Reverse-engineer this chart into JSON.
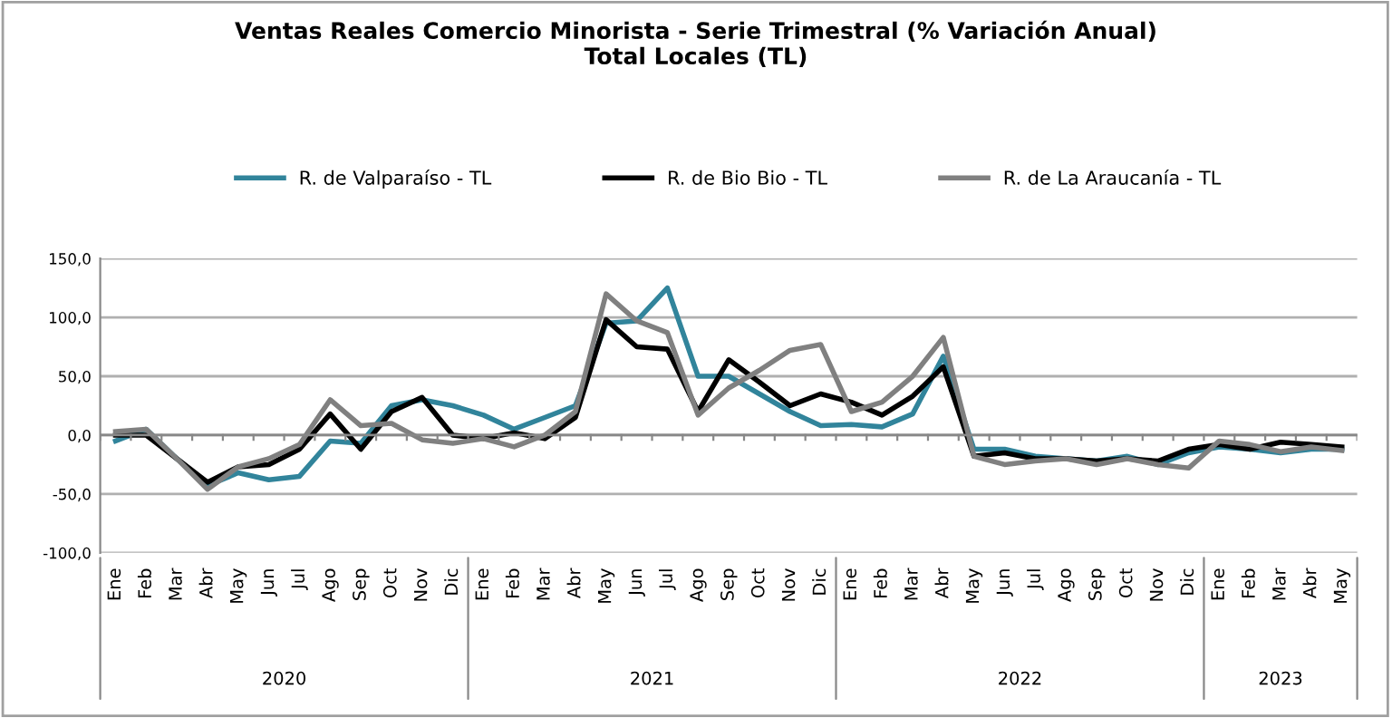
{
  "chart_data": {
    "type": "line",
    "title": "Ventas Reales Comercio Minorista - Serie Trimestral (% Variación Anual)\nTotal Locales (TL)",
    "categories": [
      "Ene",
      "Feb",
      "Mar",
      "Abr",
      "May",
      "Jun",
      "Jul",
      "Ago",
      "Sep",
      "Oct",
      "Nov",
      "Dic",
      "Ene",
      "Feb",
      "Mar",
      "Abr",
      "May",
      "Jun",
      "Jul",
      "Ago",
      "Sep",
      "Oct",
      "Nov",
      "Dic",
      "Ene",
      "Feb",
      "Mar",
      "Abr",
      "May",
      "Jun",
      "Jul",
      "Ago",
      "Sep",
      "Oct",
      "Nov",
      "Dic",
      "Ene",
      "Feb",
      "Mar",
      "Abr",
      "May"
    ],
    "series": [
      {
        "name": "R. de Valparaíso - TL",
        "color": "#31849b",
        "values": [
          -5,
          5,
          -20,
          -43,
          -32,
          -38,
          -35,
          -5,
          -7,
          25,
          30,
          25,
          17,
          5,
          15,
          25,
          95,
          97,
          125,
          50,
          50,
          35,
          20,
          8,
          9,
          7,
          18,
          67,
          -12,
          -12,
          -18,
          -20,
          -22,
          -18,
          -25,
          -15,
          -10,
          -12,
          -15,
          -12,
          -12
        ]
      },
      {
        "name": "R. de Bio Bio - TL",
        "color": "#000000",
        "values": [
          0,
          0,
          -20,
          -40,
          -27,
          -25,
          -12,
          18,
          -12,
          20,
          32,
          0,
          -3,
          2,
          -3,
          15,
          98,
          75,
          73,
          20,
          64,
          45,
          25,
          35,
          28,
          17,
          33,
          58,
          -18,
          -15,
          -20,
          -20,
          -22,
          -20,
          -22,
          -12,
          -8,
          -12,
          -6,
          -8,
          -10
        ]
      },
      {
        "name": "R. de La Araucanía - TL",
        "color": "#808080",
        "values": [
          3,
          5,
          -20,
          -46,
          -27,
          -20,
          -8,
          30,
          8,
          10,
          -4,
          -7,
          -3,
          -10,
          0,
          20,
          120,
          97,
          87,
          17,
          40,
          55,
          72,
          77,
          20,
          28,
          50,
          83,
          -18,
          -25,
          -22,
          -20,
          -25,
          -20,
          -25,
          -28,
          -5,
          -8,
          -14,
          -10,
          -13
        ]
      }
    ],
    "ylim": [
      -100,
      150
    ],
    "yticks": [
      {
        "value": -100,
        "label": "-100,0"
      },
      {
        "value": -50,
        "label": "-50,0"
      },
      {
        "value": 0,
        "label": "0,0"
      },
      {
        "value": 50,
        "label": "50,0"
      },
      {
        "value": 100,
        "label": "100,0"
      },
      {
        "value": 150,
        "label": "150,0"
      }
    ],
    "annotations": [
      "2020",
      "2021",
      "2022",
      "2023"
    ],
    "grid": "y",
    "legend": "top",
    "marker": "none",
    "line_style": "solid"
  }
}
